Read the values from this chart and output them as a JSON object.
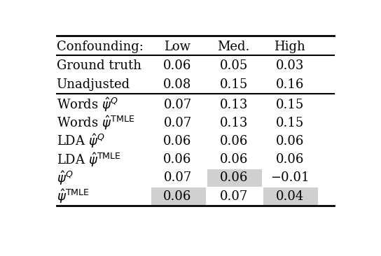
{
  "header": [
    "Confounding:",
    "Low",
    "Med.",
    "High"
  ],
  "rows": [
    {
      "label": "Ground truth",
      "values": [
        "0.06",
        "0.05",
        "0.03"
      ],
      "highlight": [
        false,
        false,
        false
      ]
    },
    {
      "label": "Unadjusted",
      "values": [
        "0.08",
        "0.15",
        "0.16"
      ],
      "highlight": [
        false,
        false,
        false
      ]
    },
    {
      "label": "Words $\\hat{\\psi}^Q$",
      "values": [
        "0.07",
        "0.13",
        "0.15"
      ],
      "highlight": [
        false,
        false,
        false
      ]
    },
    {
      "label": "Words $\\hat{\\psi}^\\mathrm{TMLE}$",
      "values": [
        "0.07",
        "0.13",
        "0.15"
      ],
      "highlight": [
        false,
        false,
        false
      ]
    },
    {
      "label": "LDA $\\hat{\\psi}^Q$",
      "values": [
        "0.06",
        "0.06",
        "0.06"
      ],
      "highlight": [
        false,
        false,
        false
      ]
    },
    {
      "label": "LDA $\\hat{\\psi}^\\mathrm{TMLE}$",
      "values": [
        "0.06",
        "0.06",
        "0.06"
      ],
      "highlight": [
        false,
        false,
        false
      ]
    },
    {
      "label": "$\\hat{\\psi}^Q$",
      "values": [
        "0.07",
        "0.06",
        "−0.01"
      ],
      "highlight": [
        false,
        true,
        false
      ]
    },
    {
      "label": "$\\hat{\\psi}^\\mathrm{TMLE}$",
      "values": [
        "0.06",
        "0.07",
        "0.04"
      ],
      "highlight": [
        true,
        false,
        true
      ]
    }
  ],
  "group1_rows": [
    0,
    1
  ],
  "group2_rows": [
    2,
    3,
    4,
    5,
    6,
    7
  ],
  "highlight_color": "#d0d0d0",
  "bg_color": "#ffffff",
  "fontsize": 13,
  "figsize": [
    5.44,
    3.66
  ],
  "dpi": 100
}
